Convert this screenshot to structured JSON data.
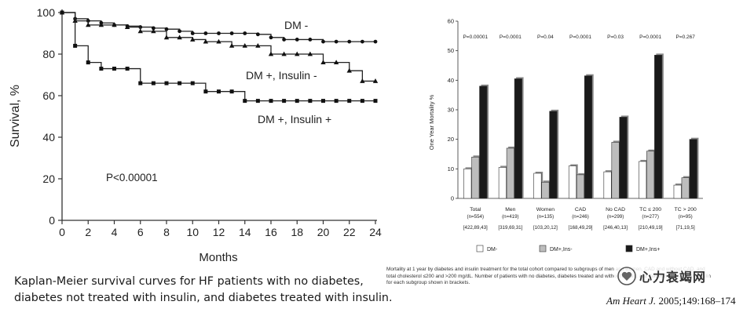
{
  "chart_data": [
    {
      "type": "line",
      "title": "",
      "xlabel": "Months",
      "ylabel": "Survival, %",
      "xlim": [
        0,
        24
      ],
      "ylim": [
        0,
        100
      ],
      "x_ticks": [
        0,
        2,
        4,
        6,
        8,
        10,
        12,
        14,
        16,
        18,
        20,
        22,
        24
      ],
      "y_ticks": [
        0,
        20,
        40,
        60,
        80,
        100
      ],
      "annotation": "P<0.00001",
      "series": [
        {
          "name": "DM -",
          "marker": "circle",
          "x": [
            0,
            1,
            2,
            3,
            4,
            5,
            6,
            7,
            8,
            9,
            10,
            11,
            12,
            13,
            14,
            15,
            16,
            17,
            18,
            19,
            20,
            21,
            22,
            23,
            24
          ],
          "y": [
            100,
            97,
            96,
            95,
            94,
            93.5,
            93,
            92.5,
            92,
            91,
            90,
            90,
            90,
            90,
            90,
            89.5,
            88,
            87,
            87,
            87,
            86,
            86,
            86,
            86,
            86
          ]
        },
        {
          "name": "DM +, Insulin -",
          "marker": "triangle",
          "x": [
            0,
            1,
            2,
            3,
            4,
            5,
            6,
            7,
            8,
            9,
            10,
            11,
            12,
            13,
            14,
            15,
            16,
            17,
            18,
            19,
            20,
            21,
            22,
            23,
            24
          ],
          "y": [
            100,
            96,
            94,
            94,
            94,
            93,
            91,
            91,
            88,
            88,
            87,
            86,
            86,
            84,
            84,
            84,
            80,
            80,
            80,
            80,
            76,
            76,
            72,
            67,
            67
          ]
        },
        {
          "name": "DM +, Insulin +",
          "marker": "square",
          "x": [
            0,
            1,
            2,
            3,
            4,
            5,
            6,
            7,
            8,
            9,
            10,
            11,
            12,
            13,
            14,
            15,
            16,
            17,
            18,
            19,
            20,
            21,
            22,
            23,
            24
          ],
          "y": [
            100,
            84,
            76,
            73,
            73,
            73,
            66,
            66,
            66,
            66,
            66,
            62,
            62,
            62,
            57.5,
            57.5,
            57.5,
            57.5,
            57.5,
            57.5,
            57.5,
            57.5,
            57.5,
            57.5,
            57.5
          ]
        }
      ]
    },
    {
      "type": "bar",
      "title": "",
      "xlabel": "",
      "ylabel": "One Year Mortality %",
      "ylim": [
        0,
        60
      ],
      "y_ticks": [
        0,
        10,
        20,
        30,
        40,
        50,
        60
      ],
      "categories": [
        "Total",
        "Men",
        "Women",
        "CAD",
        "No CAD",
        "TC ≤ 200",
        "TC > 200"
      ],
      "category_n": [
        "(n=554)",
        "(n=419)",
        "(n=135)",
        "(n=246)",
        "(n=299)",
        "(n=277)",
        "(n=95)"
      ],
      "category_breakdown": [
        "[422,89,43]",
        "[319,69,31]",
        "[103,20,12]",
        "[168,49,29]",
        "[246,40,13]",
        "[210,49,19]",
        "[71,19,5]"
      ],
      "p_values": [
        "P=0.00001",
        "P=0.0001",
        "P=0.04",
        "P=0.0001",
        "P=0.03",
        "P=0.0001",
        "P=0.267"
      ],
      "series": [
        {
          "name": "DM-",
          "color": "#ffffff",
          "values": [
            10,
            10.5,
            8.5,
            11,
            9,
            12.5,
            4.5
          ]
        },
        {
          "name": "DM+,Ins-",
          "color": "#bdbdbd",
          "values": [
            14,
            17,
            5.5,
            8,
            19,
            16,
            7
          ]
        },
        {
          "name": "DM+,Ins+",
          "color": "#1a1a1a",
          "values": [
            38,
            40.5,
            29.5,
            41.5,
            27.5,
            48.5,
            20
          ]
        }
      ]
    }
  ],
  "captions": {
    "left_line1": "Kaplan-Meier survival curves for HF patients with no diabetes,",
    "left_line2": "diabetes not treated with insulin, and diabetes treated with insulin.",
    "right_line1": "Mortality at 1 year by diabetes and insulin treatment for the total cohort compared to subgroups of men and women, CAD and without CAD, and",
    "right_line2": "total cholesterol ≤200 and >200 mg/dL. Number of patients with no diabetes, diabetes treated and without insulin, and diabetes treated with insulin",
    "right_line3": "for each subgroup shown in brackets."
  },
  "citation": {
    "journal": "Am Heart J.",
    "details": " 2005;149:168–174"
  },
  "watermark": {
    "text": "心力衰竭网"
  }
}
